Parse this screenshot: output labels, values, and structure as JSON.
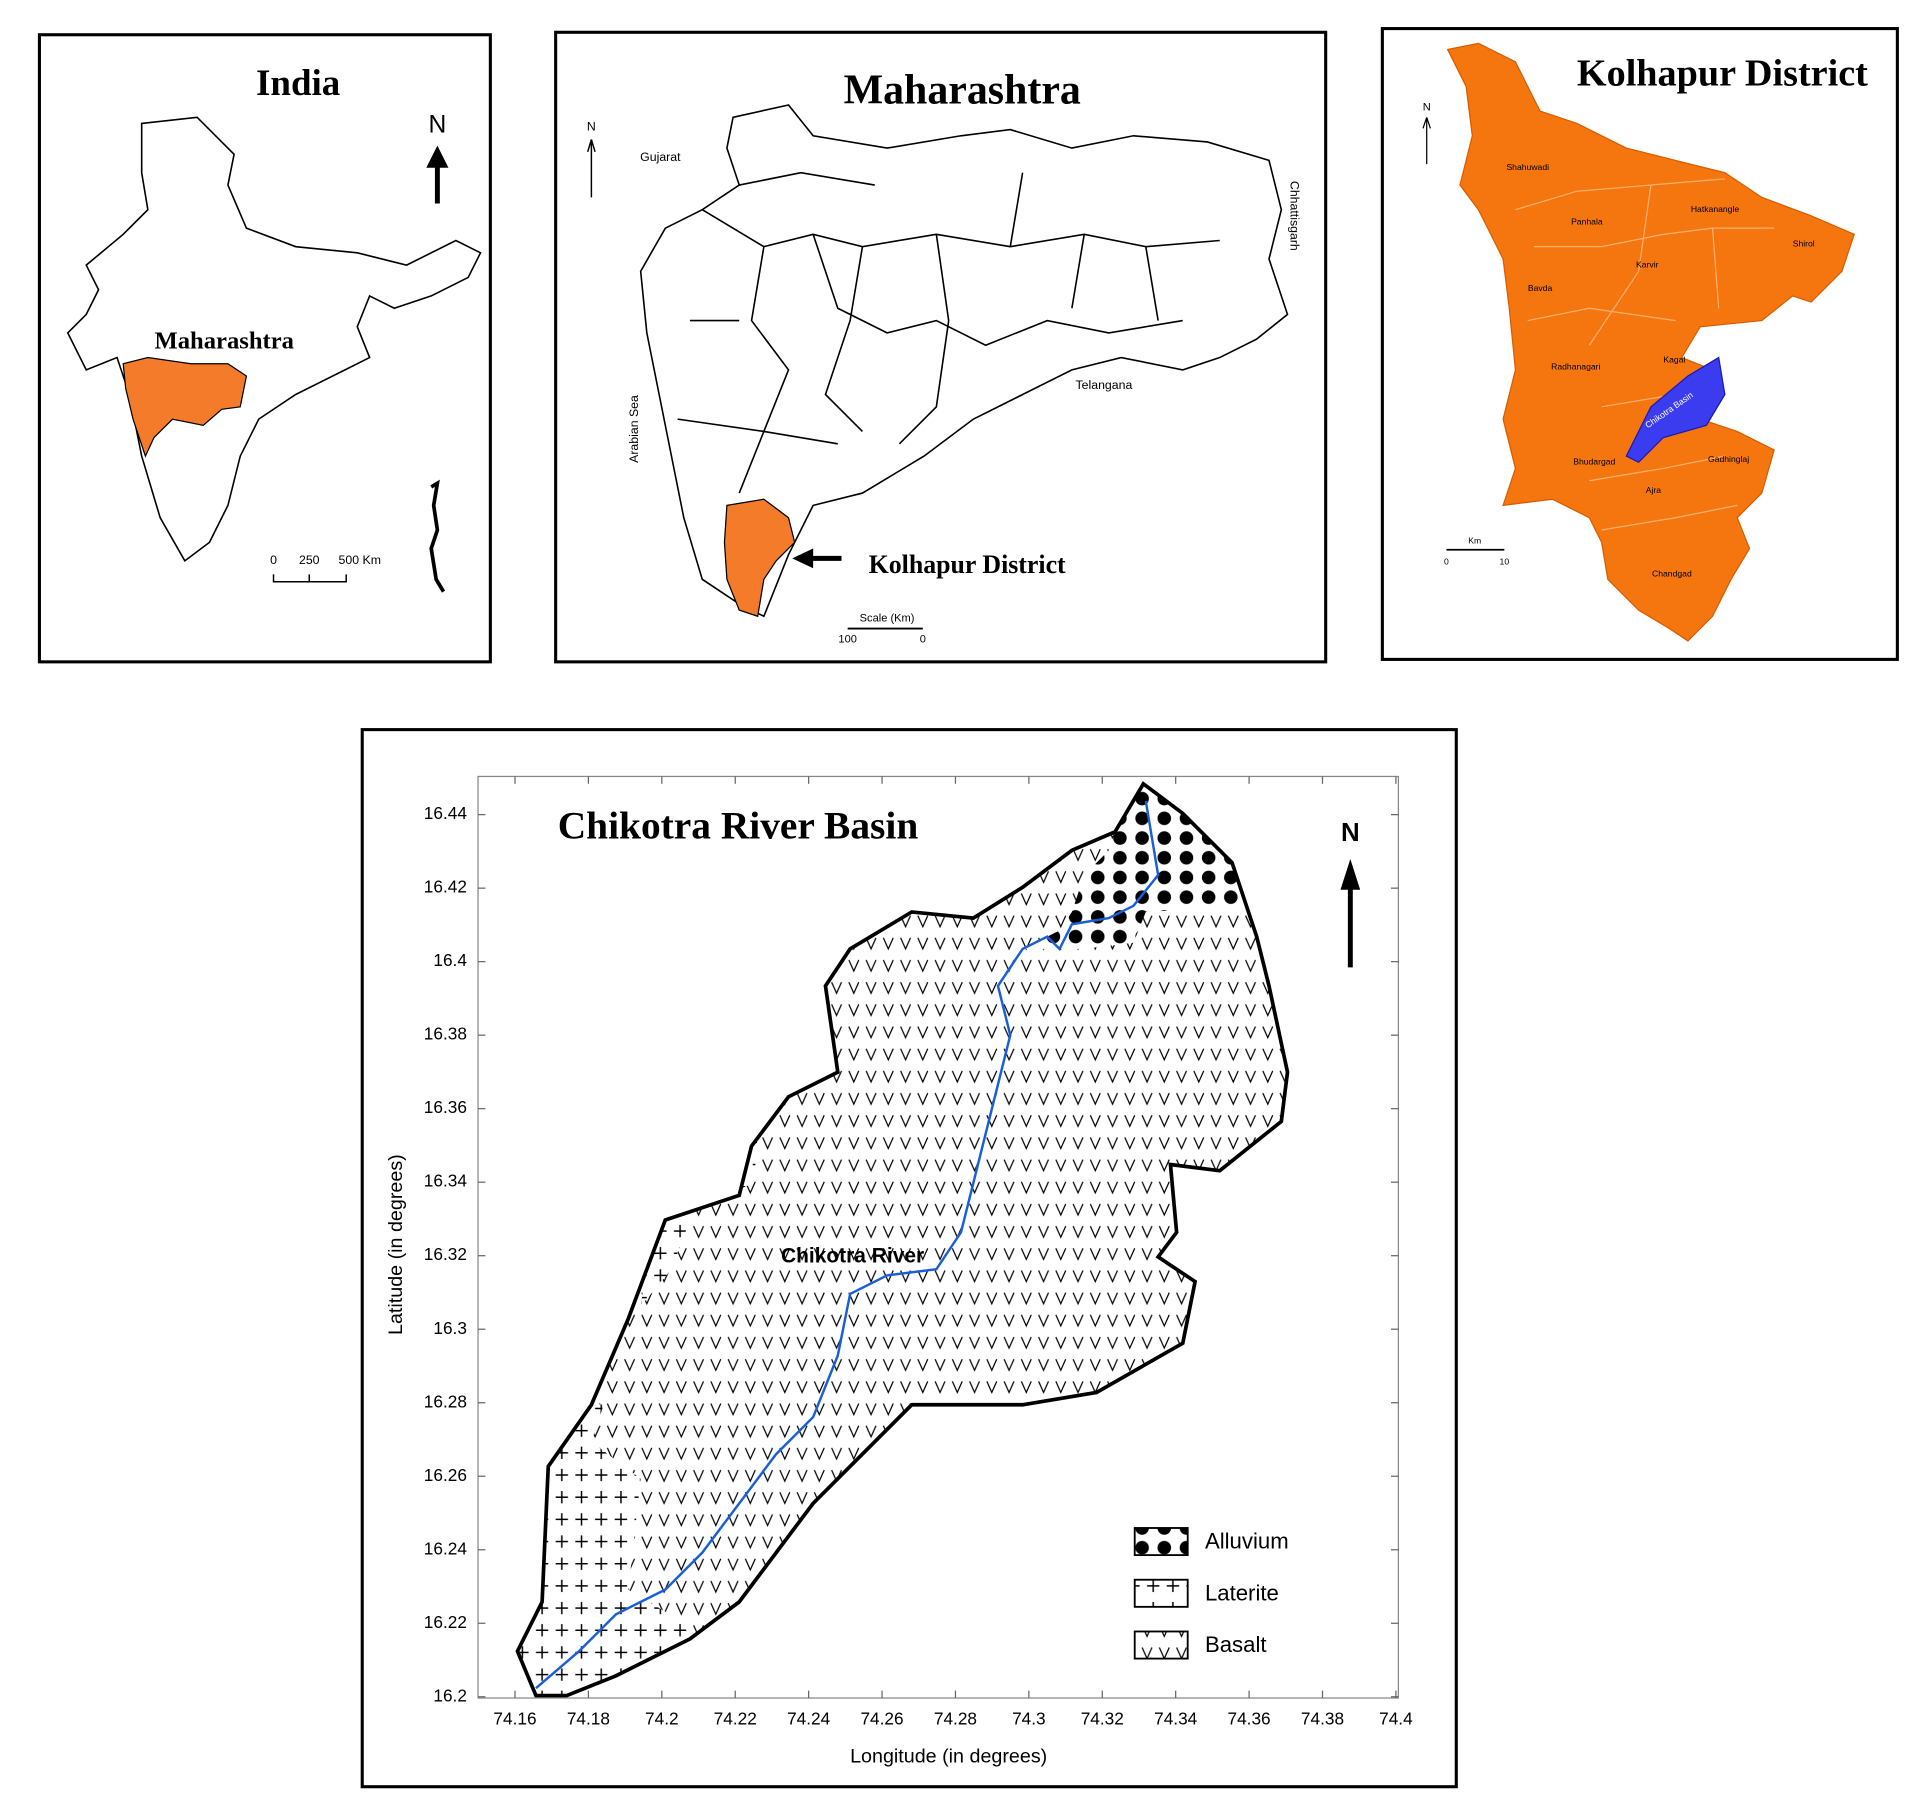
{
  "india": {
    "title": "India",
    "north": "N",
    "label": "Maharashtra",
    "scale": [
      "0",
      "250",
      "500 Km"
    ]
  },
  "maharashtra": {
    "title": "Maharashtra",
    "north": "N",
    "neighbours": [
      "Gujarat",
      "Chhattisgarh",
      "Telangana",
      "Arabian Sea"
    ],
    "pointer": "Kolhapur District",
    "scale_title": "Scale (Km)",
    "scale": [
      "100",
      "0"
    ]
  },
  "kolhapur": {
    "title": "Kolhapur District",
    "north": "N",
    "talukas": [
      "Shahuwadi",
      "Panhala",
      "Hatkanangle",
      "Shirol",
      "Karvir",
      "Bavda",
      "Radhanagari",
      "Kagal",
      "Bhudargad",
      "Gadhinglaj",
      "Ajra",
      "Chandgad"
    ],
    "basin": "Chikotra Basin",
    "scale_title": "Km",
    "scale": [
      "0",
      "10"
    ]
  },
  "chikotra": {
    "title": "Chikotra River Basin",
    "north": "N",
    "river": "Chikotra River",
    "x_label": "Longitude (in degrees)",
    "y_label": "Latitude (in degrees)",
    "xticks": [
      74.16,
      74.18,
      74.2,
      74.22,
      74.24,
      74.26,
      74.28,
      74.3,
      74.32,
      74.34,
      74.36,
      74.38,
      74.4
    ],
    "yticks": [
      16.2,
      16.22,
      16.24,
      16.26,
      16.28,
      16.3,
      16.32,
      16.34,
      16.36,
      16.38,
      16.4,
      16.42,
      16.44
    ],
    "legend": [
      "Alluvium",
      "Laterite",
      "Basalt"
    ]
  }
}
